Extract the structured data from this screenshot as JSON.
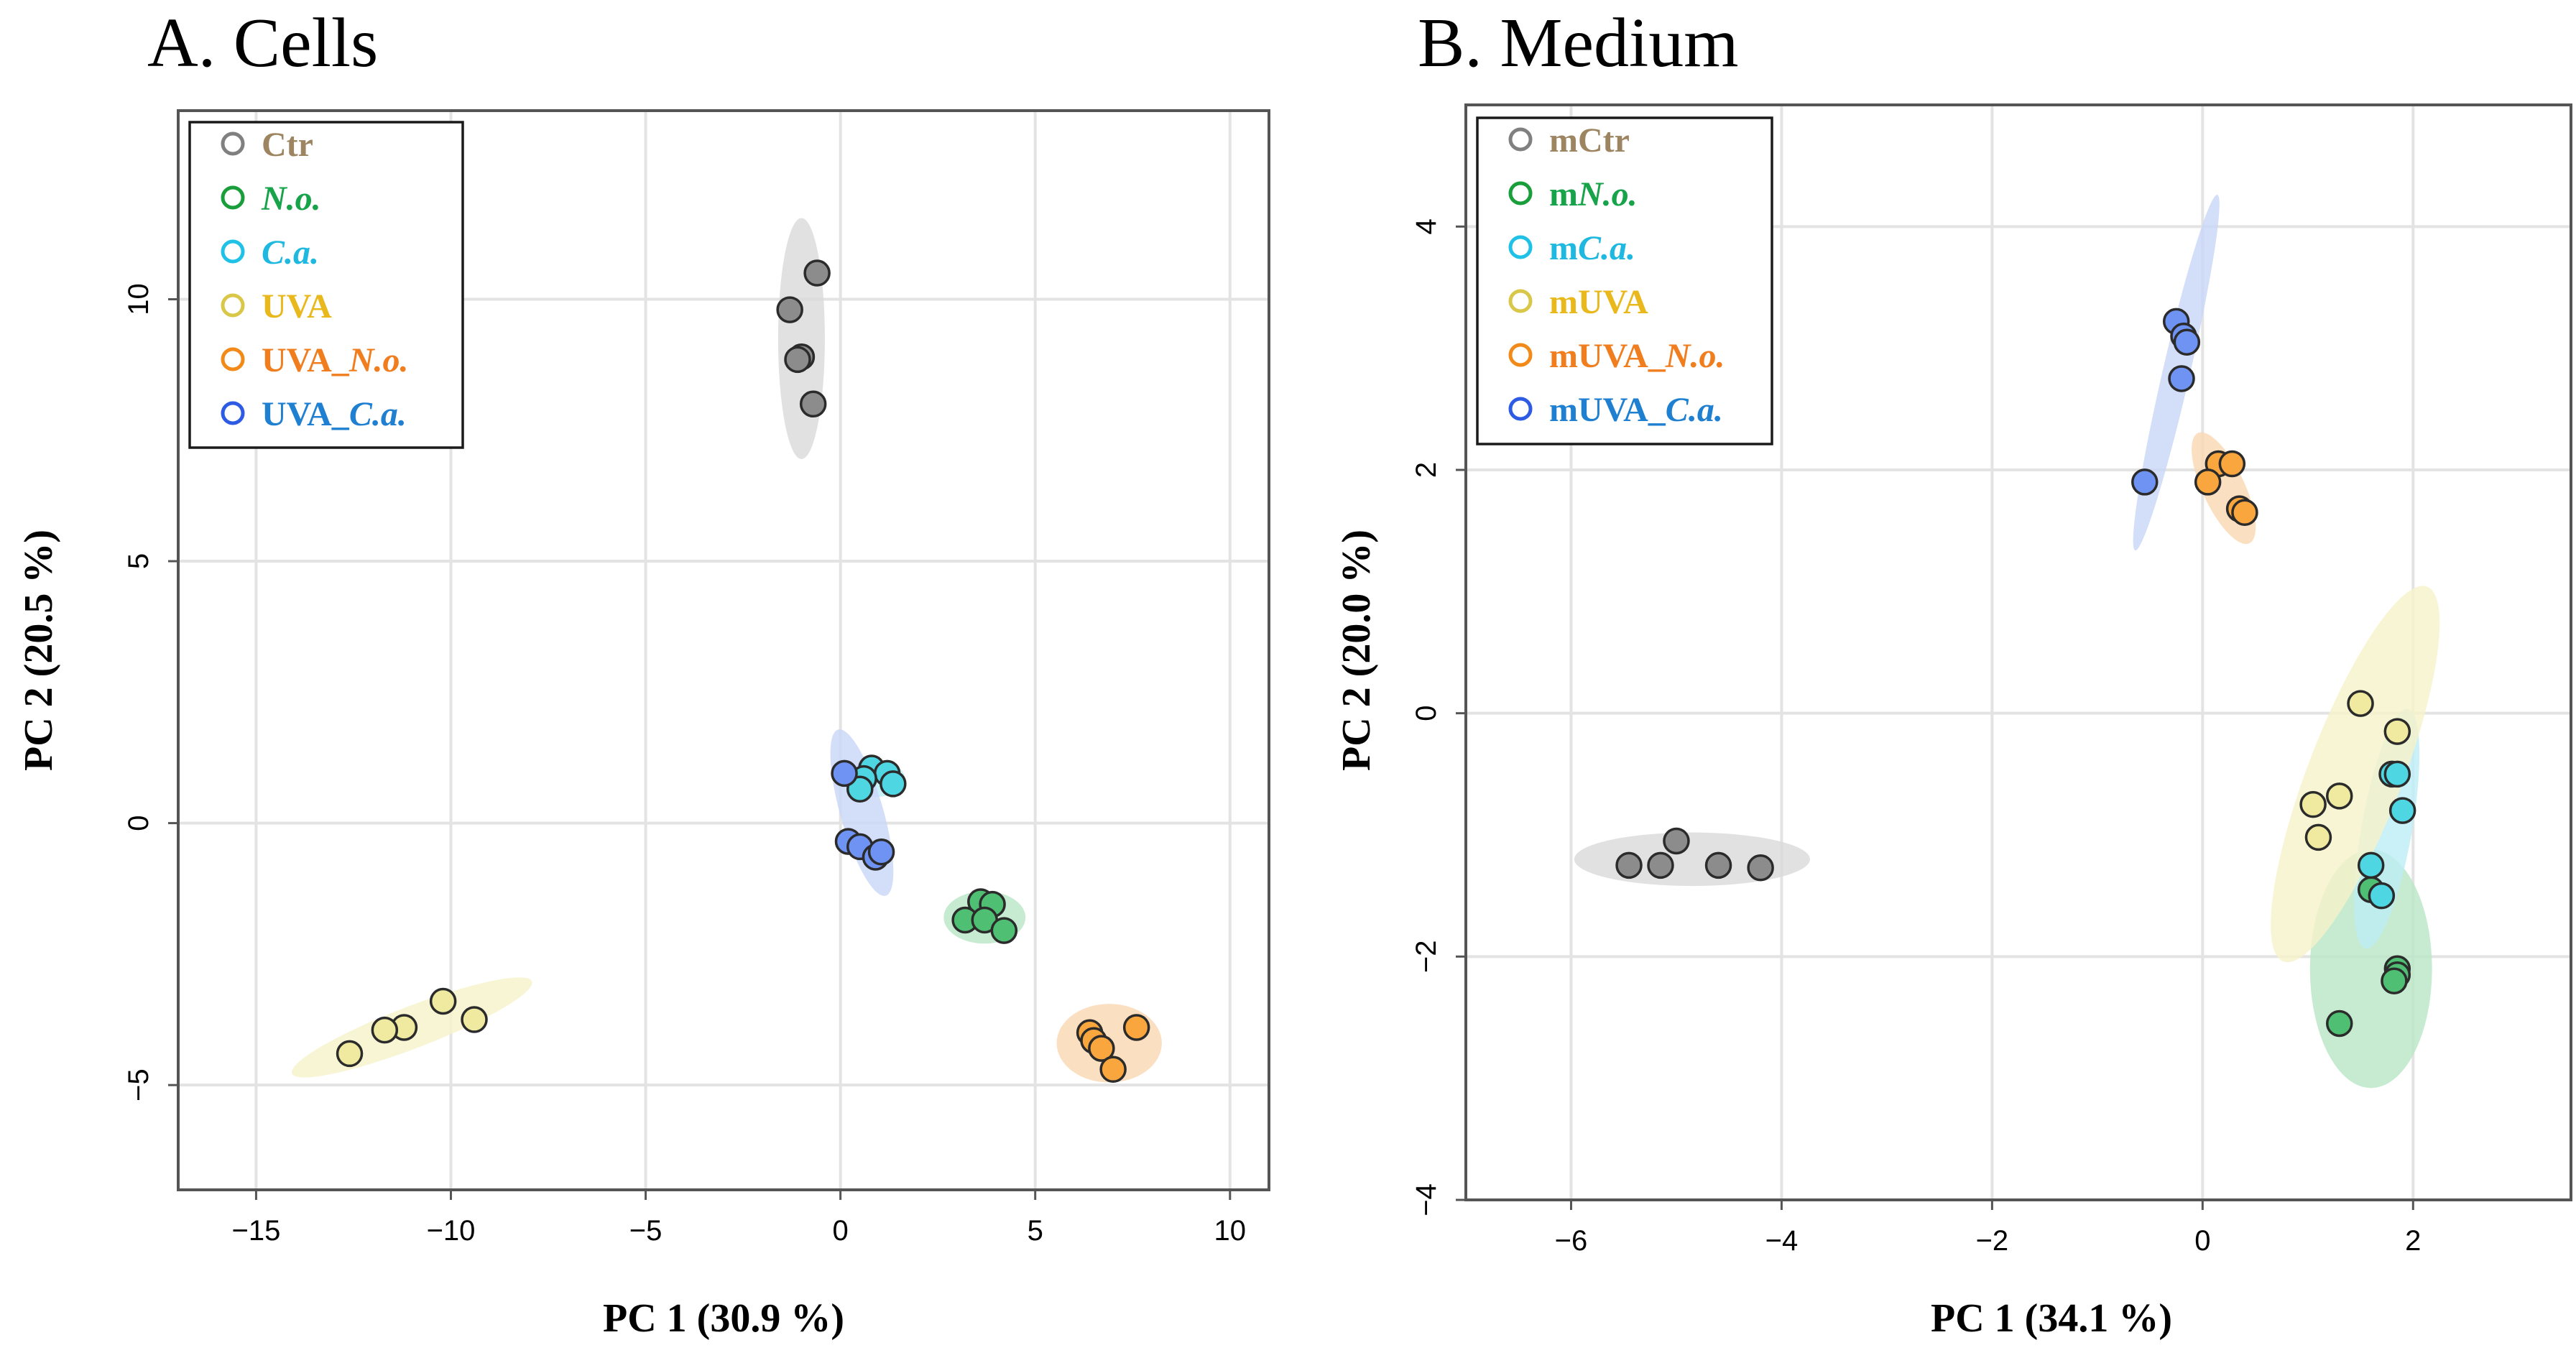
{
  "chart_data": [
    {
      "type": "scatter",
      "title": "A. Cells",
      "xlabel": "PC 1 (30.9 %)",
      "ylabel": "PC 2 (20.5 %)",
      "xlim": [
        -17,
        11
      ],
      "ylim": [
        -7,
        13.6
      ],
      "xticks": [
        -15,
        -10,
        -5,
        0,
        5,
        10
      ],
      "yticks": [
        -5,
        0,
        5,
        10
      ],
      "xtick_labels": [
        "−15",
        "−10",
        "−5",
        "0",
        "5",
        "10"
      ],
      "ytick_labels": [
        "−5",
        "0",
        "5",
        "10"
      ],
      "grid": true,
      "legend_position": "top-left",
      "series": [
        {
          "name": "Ctr",
          "italic": "",
          "color": "#8c8c8c",
          "ring_color": "#808080",
          "text_color": "#9c8560",
          "ellipse_color": "#d9d9d9",
          "points": [
            [
              -0.6,
              10.5
            ],
            [
              -1.3,
              9.8
            ],
            [
              -1.0,
              8.9
            ],
            [
              -1.1,
              8.85
            ],
            [
              -0.7,
              8.0
            ]
          ],
          "ellipse": {
            "cx": -1.0,
            "cy": 9.25,
            "rx": 0.6,
            "ry": 2.3,
            "angle": 0
          }
        },
        {
          "name": "",
          "italic": "N.o.",
          "color": "#4fbf73",
          "ring_color": "#1a9e3c",
          "text_color": "#16a34a",
          "ellipse_color": "#b9e6c4",
          "points": [
            [
              3.6,
              -1.5
            ],
            [
              3.9,
              -1.55
            ],
            [
              3.2,
              -1.85
            ],
            [
              3.7,
              -1.85
            ],
            [
              4.2,
              -2.05
            ]
          ],
          "ellipse": {
            "cx": 3.7,
            "cy": -1.8,
            "rx": 1.05,
            "ry": 0.5,
            "angle": 0
          }
        },
        {
          "name": "",
          "italic": "C.a.",
          "color": "#4fd6e3",
          "ring_color": "#1fc1e6",
          "text_color": "#1fb8e0",
          "ellipse_color": "#bdeef5",
          "points": [
            [
              0.8,
              1.05
            ],
            [
              1.2,
              0.95
            ],
            [
              0.6,
              0.85
            ],
            [
              0.5,
              0.65
            ],
            [
              1.35,
              0.75
            ]
          ],
          "ellipse": {
            "cx": 0.9,
            "cy": 0.85,
            "rx": 0.75,
            "ry": 0.35,
            "angle": 0
          }
        },
        {
          "name": "UVA",
          "italic": "",
          "color": "#efeaa0",
          "ring_color": "#d9c74a",
          "text_color": "#e8b81c",
          "ellipse_color": "#f6f3c9",
          "points": [
            [
              -10.2,
              -3.4
            ],
            [
              -9.4,
              -3.75
            ],
            [
              -11.2,
              -3.9
            ],
            [
              -11.7,
              -3.95
            ],
            [
              -12.6,
              -4.4
            ]
          ],
          "ellipse": {
            "cx": -11.0,
            "cy": -3.9,
            "rx": 3.3,
            "ry": 0.4,
            "angle": -21
          }
        },
        {
          "name": "UVA_",
          "italic": "N.o.",
          "color": "#f8a63d",
          "ring_color": "#f28a1a",
          "text_color": "#f07d1e",
          "ellipse_color": "#fad7b1",
          "points": [
            [
              7.6,
              -3.9
            ],
            [
              6.4,
              -4.0
            ],
            [
              6.5,
              -4.15
            ],
            [
              6.7,
              -4.3
            ],
            [
              7.0,
              -4.7
            ]
          ],
          "ellipse": {
            "cx": 6.9,
            "cy": -4.2,
            "rx": 1.35,
            "ry": 0.75,
            "angle": 0
          }
        },
        {
          "name": "UVA_",
          "italic": "C.a.",
          "color": "#6f93f2",
          "ring_color": "#2d5be3",
          "text_color": "#1f7fd0",
          "ellipse_color": "#c8d6f8",
          "points": [
            [
              0.1,
              0.95
            ],
            [
              0.2,
              -0.35
            ],
            [
              0.5,
              -0.45
            ],
            [
              0.9,
              -0.65
            ],
            [
              1.05,
              -0.55
            ]
          ],
          "ellipse": {
            "cx": 0.55,
            "cy": 0.2,
            "rx": 0.55,
            "ry": 1.65,
            "angle": -16
          }
        }
      ]
    },
    {
      "type": "scatter",
      "title": "B. Medium",
      "xlabel": "PC 1 (34.1 %)",
      "ylabel": "PC 2 (20.0 %)",
      "xlim": [
        -7,
        3.5
      ],
      "ylim": [
        -4,
        5.0
      ],
      "xticks": [
        -6,
        -4,
        -2,
        0,
        2
      ],
      "yticks": [
        -4,
        -2,
        0,
        2,
        4
      ],
      "xtick_labels": [
        "−6",
        "−4",
        "−2",
        "0",
        "2"
      ],
      "ytick_labels": [
        "−4",
        "−2",
        "0",
        "2",
        "4"
      ],
      "grid": true,
      "legend_position": "top-left",
      "series": [
        {
          "name": "mCtr",
          "italic": "",
          "color": "#8c8c8c",
          "ring_color": "#808080",
          "text_color": "#9c8560",
          "ellipse_color": "#d9d9d9",
          "points": [
            [
              -5.0,
              -1.05
            ],
            [
              -5.45,
              -1.25
            ],
            [
              -5.15,
              -1.25
            ],
            [
              -4.6,
              -1.25
            ],
            [
              -4.2,
              -1.27
            ]
          ],
          "ellipse": {
            "cx": -4.85,
            "cy": -1.2,
            "rx": 1.12,
            "ry": 0.22,
            "angle": 0
          }
        },
        {
          "name": "m",
          "italic": "N.o.",
          "color": "#4fbf73",
          "ring_color": "#1a9e3c",
          "text_color": "#16a34a",
          "ellipse_color": "#b9e6c4",
          "points": [
            [
              1.6,
              -1.45
            ],
            [
              1.85,
              -2.1
            ],
            [
              1.85,
              -2.15
            ],
            [
              1.82,
              -2.2
            ],
            [
              1.3,
              -2.55
            ]
          ],
          "ellipse": {
            "cx": 1.6,
            "cy": -2.1,
            "rx": 0.58,
            "ry": 0.98,
            "angle": 0
          }
        },
        {
          "name": "m",
          "italic": "C.a.",
          "color": "#4fd6e3",
          "ring_color": "#1fc1e6",
          "text_color": "#1fb8e0",
          "ellipse_color": "#bdeef5",
          "points": [
            [
              1.8,
              -0.5
            ],
            [
              1.85,
              -0.5
            ],
            [
              1.9,
              -0.8
            ],
            [
              1.6,
              -1.25
            ],
            [
              1.7,
              -1.5
            ]
          ],
          "ellipse": {
            "cx": 1.75,
            "cy": -0.95,
            "rx": 0.24,
            "ry": 1.0,
            "angle": 10
          }
        },
        {
          "name": "mUVA",
          "italic": "",
          "color": "#efeaa0",
          "ring_color": "#d9c74a",
          "text_color": "#e8b81c",
          "ellipse_color": "#f6f3c9",
          "points": [
            [
              1.5,
              0.08
            ],
            [
              1.85,
              -0.15
            ],
            [
              1.3,
              -0.68
            ],
            [
              1.05,
              -0.75
            ],
            [
              1.1,
              -1.02
            ]
          ],
          "ellipse": {
            "cx": 1.45,
            "cy": -0.5,
            "rx": 0.45,
            "ry": 1.65,
            "angle": 21
          }
        },
        {
          "name": "mUVA_",
          "italic": "N.o.",
          "color": "#f8a63d",
          "ring_color": "#f28a1a",
          "text_color": "#f07d1e",
          "ellipse_color": "#fad7b1",
          "points": [
            [
              0.15,
              2.05
            ],
            [
              0.28,
              2.05
            ],
            [
              0.05,
              1.9
            ],
            [
              0.35,
              1.68
            ],
            [
              0.4,
              1.65
            ]
          ],
          "ellipse": {
            "cx": 0.2,
            "cy": 1.85,
            "rx": 0.2,
            "ry": 0.5,
            "angle": -25
          }
        },
        {
          "name": "mUVA_",
          "italic": "C.a.",
          "color": "#6f93f2",
          "ring_color": "#2d5be3",
          "text_color": "#1f7fd0",
          "ellipse_color": "#c8d6f8",
          "points": [
            [
              -0.25,
              3.22
            ],
            [
              -0.18,
              3.1
            ],
            [
              -0.15,
              3.05
            ],
            [
              -0.2,
              2.75
            ],
            [
              -0.55,
              1.9
            ]
          ],
          "ellipse": {
            "cx": -0.25,
            "cy": 2.8,
            "rx": 0.13,
            "ry": 1.5,
            "angle": 13
          }
        }
      ]
    }
  ]
}
